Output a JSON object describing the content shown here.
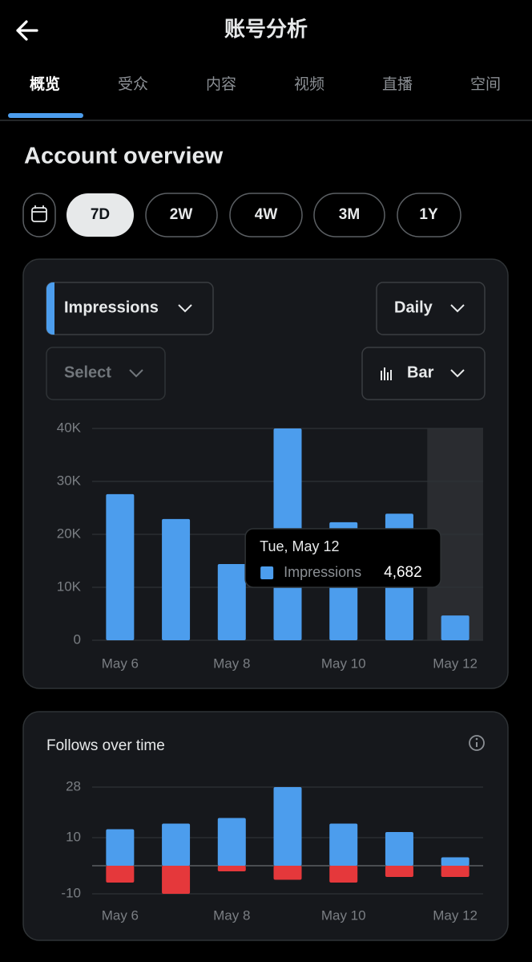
{
  "header": {
    "title": "账号分析"
  },
  "tabs": [
    "概览",
    "受众",
    "内容",
    "视频",
    "直播",
    "空间"
  ],
  "section_title": "Account overview",
  "ranges": [
    "7D",
    "2W",
    "4W",
    "3M",
    "1Y"
  ],
  "controls": {
    "metric": "Impressions",
    "interval": "Daily",
    "compare": "Select",
    "chart_kind": "Bar"
  },
  "chart_data": [
    {
      "type": "bar",
      "categories": [
        "May 6",
        null,
        "May 8",
        null,
        "May 10",
        null,
        "May 12"
      ],
      "series": [
        {
          "name": "Impressions",
          "color": "#4c9ded",
          "values": [
            27600,
            22900,
            14400,
            40000,
            22300,
            23900,
            4682
          ],
          "value_labels": [
            null,
            null,
            null,
            null,
            null,
            null,
            "4,682"
          ]
        }
      ],
      "tooltip_title": "Tue, May 12",
      "ylim": [
        0,
        40000
      ],
      "yticks": [
        0,
        {
          "value": 10000,
          "label": "10K"
        },
        {
          "value": 20000,
          "label": "20K"
        },
        {
          "value": 30000,
          "label": "30K"
        },
        {
          "value": 40000,
          "label": "40K"
        }
      ],
      "grid": true
    },
    {
      "type": "bar",
      "title": "Follows over time",
      "categories": [
        "May 6",
        null,
        "May 8",
        null,
        "May 10",
        null,
        "May 12"
      ],
      "series": [
        {
          "color": "#4c9ded",
          "values": [
            13,
            15,
            17,
            28,
            15,
            12,
            3
          ]
        },
        {
          "color": "#e5383b",
          "values": [
            -6,
            -10,
            -2,
            -5,
            -6,
            -4,
            -4
          ]
        }
      ],
      "ylim": [
        -12,
        30
      ],
      "yticks": [
        -10,
        10,
        28
      ],
      "grid": true
    }
  ]
}
